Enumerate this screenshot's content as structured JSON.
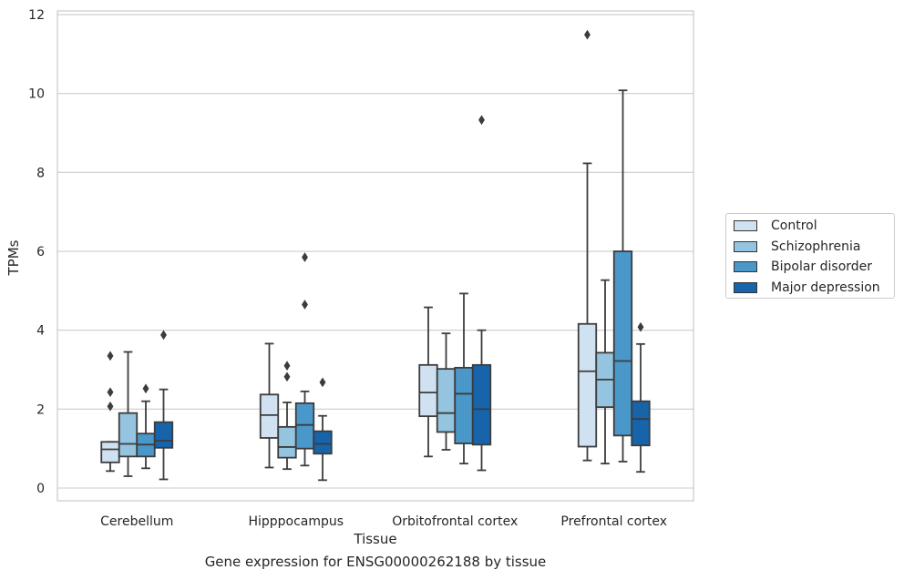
{
  "chart_data": {
    "type": "box",
    "xlabel": "Tissue",
    "ylabel": "TPMs",
    "caption": "Gene expression for ENSG00000262188 by tissue",
    "categories": [
      "Cerebellum",
      "Hipppocampus",
      "Orbitofrontal cortex",
      "Prefrontal cortex"
    ],
    "ylim": [
      -0.35,
      12.1
    ],
    "yticks": [
      0,
      2,
      4,
      6,
      8,
      10,
      12
    ],
    "grid": true,
    "legend_position": "right",
    "series": [
      {
        "name": "Control",
        "color": "#d0e1f2",
        "boxes": [
          {
            "whislo": 0.43,
            "q1": 0.65,
            "med": 0.98,
            "q3": 1.17,
            "whishi": 1.17,
            "fliers": [
              3.35,
              2.43,
              2.07
            ]
          },
          {
            "whislo": 0.52,
            "q1": 1.27,
            "med": 1.85,
            "q3": 2.37,
            "whishi": 3.66,
            "fliers": []
          },
          {
            "whislo": 0.8,
            "q1": 1.82,
            "med": 2.42,
            "q3": 3.12,
            "whishi": 4.58,
            "fliers": []
          },
          {
            "whislo": 0.7,
            "q1": 1.05,
            "med": 2.96,
            "q3": 4.16,
            "whishi": 8.23,
            "fliers": [
              11.49
            ]
          }
        ]
      },
      {
        "name": "Schizophrenia",
        "color": "#94c4df",
        "boxes": [
          {
            "whislo": 0.3,
            "q1": 0.8,
            "med": 1.12,
            "q3": 1.9,
            "whishi": 3.45,
            "fliers": []
          },
          {
            "whislo": 0.48,
            "q1": 0.77,
            "med": 1.04,
            "q3": 1.55,
            "whishi": 2.17,
            "fliers": [
              3.1,
              2.82
            ]
          },
          {
            "whislo": 0.97,
            "q1": 1.42,
            "med": 1.9,
            "q3": 3.02,
            "whishi": 3.92,
            "fliers": []
          },
          {
            "whislo": 0.62,
            "q1": 2.05,
            "med": 2.75,
            "q3": 3.43,
            "whishi": 5.27,
            "fliers": []
          }
        ]
      },
      {
        "name": "Bipolar disorder",
        "color": "#4a98c9",
        "boxes": [
          {
            "whislo": 0.5,
            "q1": 0.8,
            "med": 1.1,
            "q3": 1.38,
            "whishi": 2.2,
            "fliers": [
              2.52
            ]
          },
          {
            "whislo": 0.57,
            "q1": 1.0,
            "med": 1.6,
            "q3": 2.15,
            "whishi": 2.45,
            "fliers": [
              5.85,
              4.65
            ]
          },
          {
            "whislo": 0.62,
            "q1": 1.13,
            "med": 2.39,
            "q3": 3.05,
            "whishi": 4.93,
            "fliers": []
          },
          {
            "whislo": 0.67,
            "q1": 1.33,
            "med": 3.22,
            "q3": 6.0,
            "whishi": 10.08,
            "fliers": []
          }
        ]
      },
      {
        "name": "Major depression",
        "color": "#1764ab",
        "boxes": [
          {
            "whislo": 0.22,
            "q1": 1.02,
            "med": 1.2,
            "q3": 1.67,
            "whishi": 2.5,
            "fliers": [
              3.88
            ]
          },
          {
            "whislo": 0.2,
            "q1": 0.87,
            "med": 1.12,
            "q3": 1.44,
            "whishi": 1.83,
            "fliers": [
              2.68
            ]
          },
          {
            "whislo": 0.45,
            "q1": 1.1,
            "med": 2.0,
            "q3": 3.12,
            "whishi": 4.0,
            "fliers": [
              9.33
            ]
          },
          {
            "whislo": 0.41,
            "q1": 1.08,
            "med": 1.75,
            "q3": 2.2,
            "whishi": 3.65,
            "fliers": [
              4.08
            ]
          }
        ]
      }
    ]
  }
}
